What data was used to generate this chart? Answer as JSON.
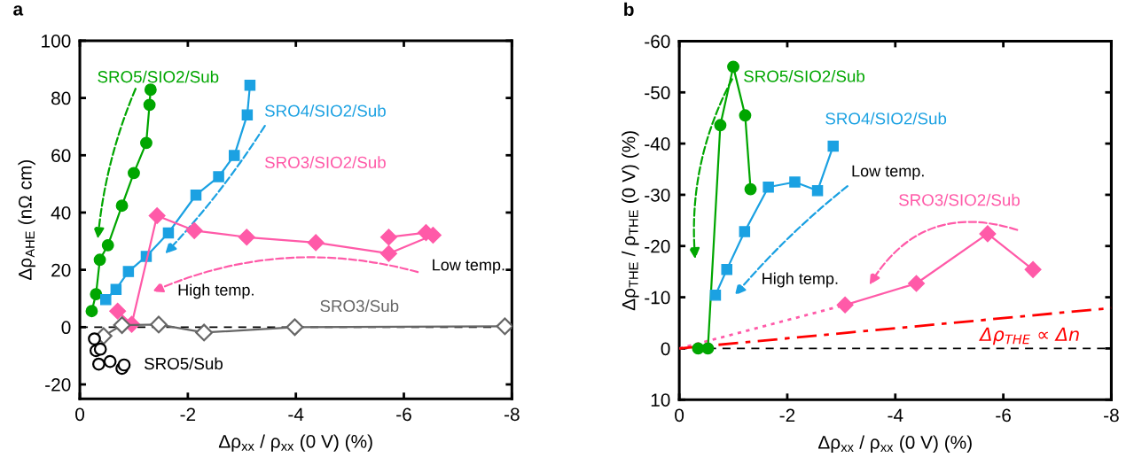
{
  "chart_data": [
    {
      "type": "line",
      "title": "a",
      "xlabel": "Δρ$_{xx}$ / ρ$_{xx}$ (0 V) (%)",
      "ylabel": "Δρ$_{AHE}$ (nΩ cm)",
      "xlim": [
        0,
        -8
      ],
      "xticks": [
        0,
        -2,
        -4,
        -6,
        -8
      ],
      "ylim": [
        -25,
        100
      ],
      "yticks": [
        -20,
        0,
        20,
        40,
        60,
        80,
        100
      ],
      "grid": false,
      "legend": false,
      "ref_lines": [
        {
          "axis": "y",
          "value": 0,
          "color": "#000000",
          "line_style": "dashed"
        }
      ],
      "annotations": [
        "High temp.",
        "Low temp."
      ],
      "series": [
        {
          "name": "SRO5/SIO2/Sub",
          "color": "#00a600",
          "marker": "circle",
          "line_style": "solid",
          "x": [
            -0.22,
            -0.3,
            -0.37,
            -0.52,
            -0.78,
            -1.0,
            -1.23,
            -1.29,
            -1.31
          ],
          "values": [
            5.6,
            11.5,
            23.5,
            28.6,
            42.4,
            53.8,
            64.3,
            77.6,
            82.9
          ]
        },
        {
          "name": "SRO4/SIO2/Sub",
          "color": "#1ba1e2",
          "marker": "square",
          "line_style": "solid",
          "x": [
            -0.48,
            -0.67,
            -0.9,
            -1.23,
            -1.64,
            -2.15,
            -2.57,
            -2.86,
            -3.1,
            -3.15
          ],
          "values": [
            9.6,
            13.2,
            19.4,
            24.7,
            32.9,
            46.1,
            52.5,
            59.9,
            74.1,
            84.4
          ]
        },
        {
          "name": "SRO3/SIO2/Sub",
          "color": "#ff5aa8",
          "marker": "diamond",
          "line_style": "solid",
          "x": [
            -0.7,
            -0.96,
            -1.43,
            -2.12,
            -3.09,
            -4.37,
            -5.72,
            -6.54,
            -6.41,
            -5.72
          ],
          "values": [
            5.6,
            1.0,
            38.9,
            33.7,
            31.4,
            29.5,
            25.7,
            32.1,
            33.0,
            31.4
          ]
        },
        {
          "name": "SRO3/Sub",
          "color": "#666666",
          "marker": "diamond",
          "line_style": "solid",
          "x": [
            -0.44,
            -0.78,
            -1.46,
            -2.3,
            -3.98,
            -7.87
          ],
          "values": [
            -3.1,
            0.7,
            0.9,
            -1.9,
            0,
            0.3
          ]
        },
        {
          "name": "SRO5/Sub",
          "type": "scatter",
          "color": "#000000",
          "marker": "circle",
          "x": [
            -0.27,
            -0.3,
            -0.38,
            -0.35,
            -0.56,
            -0.78,
            -0.82
          ],
          "values": [
            -4.1,
            -8.2,
            -7.7,
            -12.9,
            -12.0,
            -14.4,
            -13.2
          ]
        }
      ]
    },
    {
      "type": "line",
      "title": "b",
      "xlabel": "Δρ$_{xx}$ / ρ$_{xx}$ (0 V) (%)",
      "ylabel": "Δρ$_{THE}$ / ρ$_{THE}$ (0 V) (%)",
      "xlim": [
        0,
        -8
      ],
      "xticks": [
        0,
        -2,
        -4,
        -6,
        -8
      ],
      "ylim": [
        10,
        -60
      ],
      "yticks": [
        10,
        0,
        -10,
        -20,
        -30,
        -40,
        -50,
        -60
      ],
      "grid": false,
      "legend": false,
      "ref_lines": [
        {
          "axis": "y",
          "value": 0,
          "color": "#000000",
          "line_style": "dashed"
        }
      ],
      "annotations": [
        "Low temp.",
        "High temp.",
        "Δρ$_{THE}$ ∝ Δn"
      ],
      "series": [
        {
          "color": "#ff5aa8",
          "line_style": "dotted",
          "x": [
            0,
            -3.07
          ],
          "values": [
            0,
            -8.5
          ]
        },
        {
          "color": "#ff0000",
          "line_style": "dashdot",
          "x": [
            0,
            -8
          ],
          "values": [
            0,
            -7.9
          ]
        },
        {
          "name": "SRO5/SIO2/Sub",
          "color": "#00a600",
          "marker": "circle",
          "line_style": "solid",
          "x": [
            -0.35,
            -0.53,
            -0.76,
            -1.0,
            -1.22,
            -1.32
          ],
          "values": [
            0,
            0,
            -43.6,
            -55.0,
            -45.5,
            -31.1
          ]
        },
        {
          "name": "SRO4/SIO2/Sub",
          "color": "#1ba1e2",
          "marker": "square",
          "line_style": "solid",
          "x": [
            -0.67,
            -0.88,
            -1.21,
            -1.65,
            -2.14,
            -2.56,
            -2.85
          ],
          "values": [
            -10.4,
            -15.4,
            -22.8,
            -31.5,
            -32.5,
            -30.8,
            -39.5
          ]
        },
        {
          "name": "SRO3/SIO2/Sub",
          "color": "#ff5aa8",
          "marker": "diamond",
          "line_style": "solid",
          "x": [
            -3.07,
            -4.39,
            -5.71,
            -6.55
          ],
          "values": [
            -8.5,
            -12.7,
            -22.4,
            -15.4
          ]
        }
      ]
    }
  ]
}
